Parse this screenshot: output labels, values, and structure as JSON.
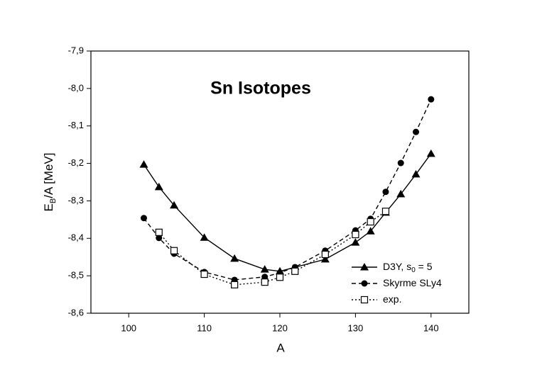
{
  "chart_data": {
    "type": "line",
    "title": "Sn Isotopes",
    "x_label": "A",
    "y_label": {
      "main": "E",
      "sub": "B",
      "rest": "/A [MeV]"
    },
    "xlim": [
      95,
      145
    ],
    "xticks": [
      100,
      110,
      120,
      130,
      140
    ],
    "ylim": [
      -8.6,
      -7.9
    ],
    "yticks": [
      {
        "value": -8.6,
        "label": "-8,6"
      },
      {
        "value": -8.5,
        "label": "-8,5"
      },
      {
        "value": -8.4,
        "label": "-8,4"
      },
      {
        "value": -8.3,
        "label": "-8,3"
      },
      {
        "value": -8.2,
        "label": "-8,2"
      },
      {
        "value": -8.1,
        "label": "-8,1"
      },
      {
        "value": -8.0,
        "label": "-8,0"
      },
      {
        "value": -7.9,
        "label": "-7,9"
      }
    ],
    "legend": "lower right",
    "series": [
      {
        "name": {
          "main": "D3Y, s",
          "sub": "0",
          "rest": " = 5"
        },
        "color": "#000000",
        "marker": "triangle",
        "linestyle": "solid",
        "x": [
          102,
          104,
          106,
          110,
          114,
          118,
          120,
          126,
          130,
          132,
          134,
          136,
          138,
          140
        ],
        "values": [
          -8.203,
          -8.263,
          -8.312,
          -8.398,
          -8.454,
          -8.483,
          -8.488,
          -8.456,
          -8.411,
          -8.381,
          -8.331,
          -8.282,
          -8.229,
          -8.174
        ]
      },
      {
        "name": {
          "main": "Skyrme SLy4"
        },
        "color": "#000000",
        "marker": "circle",
        "linestyle": "dashed",
        "x": [
          102,
          104,
          106,
          110,
          114,
          118,
          120,
          122,
          126,
          130,
          132,
          134,
          136,
          138,
          140
        ],
        "values": [
          -8.346,
          -8.399,
          -8.441,
          -8.49,
          -8.511,
          -8.503,
          -8.492,
          -8.477,
          -8.433,
          -8.379,
          -8.348,
          -8.276,
          -8.199,
          -8.116,
          -8.029
        ]
      },
      {
        "name": {
          "main": "exp."
        },
        "color": "#000000",
        "marker": "square-open",
        "linestyle": "dotted",
        "x": [
          104,
          106,
          110,
          114,
          118,
          120,
          122,
          126,
          130,
          132,
          134
        ],
        "values": [
          -8.384,
          -8.433,
          -8.496,
          -8.524,
          -8.517,
          -8.504,
          -8.488,
          -8.443,
          -8.39,
          -8.356,
          -8.328
        ]
      }
    ]
  }
}
